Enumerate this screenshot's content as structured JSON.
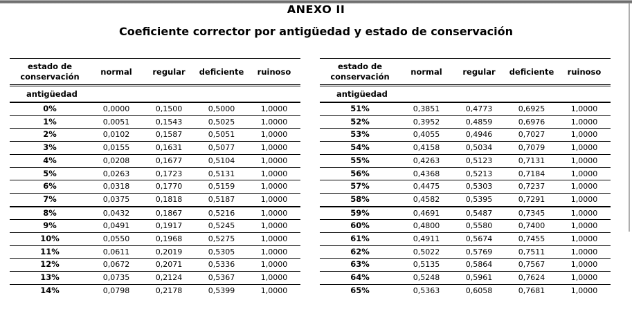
{
  "page": {
    "title": "ANEXO II",
    "subtitle": "Coeficiente corrector por antigüedad y estado de conservación"
  },
  "colors": {
    "text": "#000000",
    "rule": "#000000",
    "top_bar": "#5a5a5a",
    "page_edge": "#9a9a9a"
  },
  "table": {
    "columns": [
      "estado de conservación",
      "normal",
      "regular",
      "deficiente",
      "ruinoso"
    ],
    "group_label": "antigüedad",
    "thick_divider_after_row": 7,
    "tables": [
      {
        "name": "left",
        "rows": [
          [
            "0%",
            "0,0000",
            "0,1500",
            "0,5000",
            "1,0000"
          ],
          [
            "1%",
            "0,0051",
            "0,1543",
            "0,5025",
            "1,0000"
          ],
          [
            "2%",
            "0,0102",
            "0,1587",
            "0,5051",
            "1,0000"
          ],
          [
            "3%",
            "0,0155",
            "0,1631",
            "0,5077",
            "1,0000"
          ],
          [
            "4%",
            "0,0208",
            "0,1677",
            "0,5104",
            "1,0000"
          ],
          [
            "5%",
            "0,0263",
            "0,1723",
            "0,5131",
            "1,0000"
          ],
          [
            "6%",
            "0,0318",
            "0,1770",
            "0,5159",
            "1,0000"
          ],
          [
            "7%",
            "0,0375",
            "0,1818",
            "0,5187",
            "1,0000"
          ],
          [
            "8%",
            "0,0432",
            "0,1867",
            "0,5216",
            "1,0000"
          ],
          [
            "9%",
            "0,0491",
            "0,1917",
            "0,5245",
            "1,0000"
          ],
          [
            "10%",
            "0,0550",
            "0,1968",
            "0,5275",
            "1,0000"
          ],
          [
            "11%",
            "0,0611",
            "0,2019",
            "0,5305",
            "1,0000"
          ],
          [
            "12%",
            "0,0672",
            "0,2071",
            "0,5336",
            "1,0000"
          ],
          [
            "13%",
            "0,0735",
            "0,2124",
            "0,5367",
            "1,0000"
          ],
          [
            "14%",
            "0,0798",
            "0,2178",
            "0,5399",
            "1,0000"
          ]
        ]
      },
      {
        "name": "right",
        "rows": [
          [
            "51%",
            "0,3851",
            "0,4773",
            "0,6925",
            "1,0000"
          ],
          [
            "52%",
            "0,3952",
            "0,4859",
            "0,6976",
            "1,0000"
          ],
          [
            "53%",
            "0,4055",
            "0,4946",
            "0,7027",
            "1,0000"
          ],
          [
            "54%",
            "0,4158",
            "0,5034",
            "0,7079",
            "1,0000"
          ],
          [
            "55%",
            "0,4263",
            "0,5123",
            "0,7131",
            "1,0000"
          ],
          [
            "56%",
            "0,4368",
            "0,5213",
            "0,7184",
            "1,0000"
          ],
          [
            "57%",
            "0,4475",
            "0,5303",
            "0,7237",
            "1,0000"
          ],
          [
            "58%",
            "0,4582",
            "0,5395",
            "0,7291",
            "1,0000"
          ],
          [
            "59%",
            "0,4691",
            "0,5487",
            "0,7345",
            "1,0000"
          ],
          [
            "60%",
            "0,4800",
            "0,5580",
            "0,7400",
            "1,0000"
          ],
          [
            "61%",
            "0,4911",
            "0,5674",
            "0,7455",
            "1,0000"
          ],
          [
            "62%",
            "0,5022",
            "0,5769",
            "0,7511",
            "1,0000"
          ],
          [
            "63%",
            "0,5135",
            "0,5864",
            "0,7567",
            "1,0000"
          ],
          [
            "64%",
            "0,5248",
            "0,5961",
            "0,7624",
            "1,0000"
          ],
          [
            "65%",
            "0,5363",
            "0,6058",
            "0,7681",
            "1,0000"
          ]
        ]
      }
    ]
  }
}
